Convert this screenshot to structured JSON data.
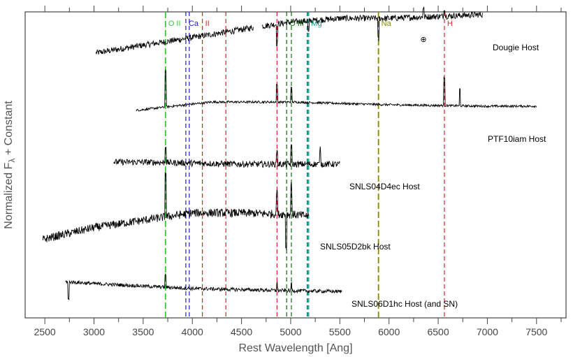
{
  "chart_data": {
    "type": "line",
    "xlabel": "Rest Wavelength [Ang]",
    "ylabel": "Normalized F",
    "ylabel_sub": "λ",
    "ylabel_suffix": " + Constant",
    "xlim": [
      2300,
      7800
    ],
    "x_ticks": [
      2500,
      3000,
      3500,
      4000,
      4500,
      5000,
      5500,
      6000,
      6500,
      7000,
      7500
    ],
    "grid": false,
    "legend": "none",
    "reference_lines": [
      {
        "label": "O II",
        "wavelengths": [
          3727
        ],
        "color": "#33cc33",
        "style": "long-dash"
      },
      {
        "label": "Ca II",
        "wavelengths": [
          3934,
          3969
        ],
        "color": "#1a1acc",
        "style": "dash"
      },
      {
        "label": "",
        "wavelengths": [
          4102,
          4341,
          4861,
          6563
        ],
        "color": "#dd2222",
        "style": "dash"
      },
      {
        "label": "O III",
        "wavelengths": [
          4959,
          5007
        ],
        "color": "#116611",
        "style": "dash"
      },
      {
        "label": "Mg",
        "wavelengths": [
          5167,
          5175,
          5184
        ],
        "color": "#119988",
        "style": "dash"
      },
      {
        "label": "Na",
        "wavelengths": [
          5893
        ],
        "color": "#888800",
        "style": "long-dash"
      }
    ],
    "line_labels": [
      {
        "text": "O II",
        "x": 3727,
        "color": "#33cc33"
      },
      {
        "text": "Ca",
        "x": 3934,
        "color": "#1a1acc"
      },
      {
        "text": "II",
        "x": 4102,
        "color": "#dd2222"
      },
      {
        "text": "O III",
        "x": 4959,
        "color": "#116611"
      },
      {
        "text": "Mg",
        "x": 5180,
        "color": "#119988"
      },
      {
        "text": "Na",
        "x": 5893,
        "color": "#888800"
      },
      {
        "text": "H",
        "x": 6563,
        "color": "#dd2222"
      }
    ],
    "telluric_symbol": {
      "text": "⊕",
      "x": 6350
    },
    "series": [
      {
        "name": "Dougie Host",
        "x_start": 3020,
        "x_end": 6950,
        "x_start_alt": 3020,
        "gap": [
          4620,
          4710
        ],
        "shape": [
          [
            3020,
            0.35
          ],
          [
            3500,
            0.55
          ],
          [
            4000,
            0.75
          ],
          [
            4600,
            1.0
          ],
          [
            4720,
            1.05
          ],
          [
            5000,
            1.15
          ],
          [
            5500,
            1.25
          ],
          [
            6000,
            1.25
          ],
          [
            6500,
            1.3
          ],
          [
            6950,
            1.35
          ]
        ],
        "noise": 0.08,
        "features": [
          [
            4861,
            -0.5
          ],
          [
            5180,
            -0.3
          ],
          [
            5893,
            -0.55
          ],
          [
            6350,
            0.25
          ],
          [
            6563,
            0.2
          ]
        ]
      },
      {
        "name": "PTF10iam Host",
        "x_start": 3430,
        "x_end": 7500,
        "shape": [
          [
            3430,
            0.3
          ],
          [
            3800,
            0.45
          ],
          [
            4200,
            0.6
          ],
          [
            5000,
            0.6
          ],
          [
            6000,
            0.5
          ],
          [
            7000,
            0.45
          ],
          [
            7500,
            0.45
          ]
        ],
        "noise": 0.04,
        "features": [
          [
            3727,
            1.3
          ],
          [
            4861,
            0.6
          ],
          [
            5007,
            0.5
          ],
          [
            6563,
            1.0
          ],
          [
            6720,
            0.6
          ]
        ]
      },
      {
        "name": "SNLS04D4ec Host",
        "x_start": 3200,
        "x_end": 5500,
        "shape": [
          [
            3200,
            0.6
          ],
          [
            3500,
            0.6
          ],
          [
            4000,
            0.55
          ],
          [
            4500,
            0.5
          ],
          [
            5000,
            0.5
          ],
          [
            5500,
            0.5
          ]
        ],
        "noise": 0.15,
        "features": [
          [
            3727,
            0.8
          ],
          [
            4861,
            0.6
          ],
          [
            5007,
            0.8
          ],
          [
            5300,
            0.7
          ]
        ]
      },
      {
        "name": "SNLS05D2bk Host",
        "x_start": 2480,
        "x_end": 5180,
        "shape": [
          [
            2480,
            -0.3
          ],
          [
            3000,
            0.1
          ],
          [
            3500,
            0.35
          ],
          [
            4000,
            0.6
          ],
          [
            4500,
            0.6
          ],
          [
            5000,
            0.55
          ],
          [
            5180,
            0.5
          ]
        ],
        "noise": 0.14,
        "features": [
          [
            3727,
            1.5
          ],
          [
            4861,
            0.8
          ],
          [
            4955,
            -1.1
          ],
          [
            5007,
            1.0
          ]
        ]
      },
      {
        "name": "SNLS06D1hc Host (and SN)",
        "x_start": 2710,
        "x_end": 5520,
        "shape": [
          [
            2710,
            0.6
          ],
          [
            3000,
            0.5
          ],
          [
            4000,
            0.25
          ],
          [
            4900,
            0.15
          ],
          [
            5500,
            0.1
          ]
        ],
        "noise": 0.09,
        "features": [
          [
            2740,
            -0.9
          ],
          [
            3727,
            0.6
          ],
          [
            4861,
            0.4
          ],
          [
            5007,
            0.4
          ]
        ]
      }
    ],
    "series_labels": [
      "Dougie Host",
      "PTF10iam Host",
      "SNLS04D4ec Host",
      "SNLS05D2bk Host",
      "SNLS06D1hc Host (and SN)"
    ]
  }
}
